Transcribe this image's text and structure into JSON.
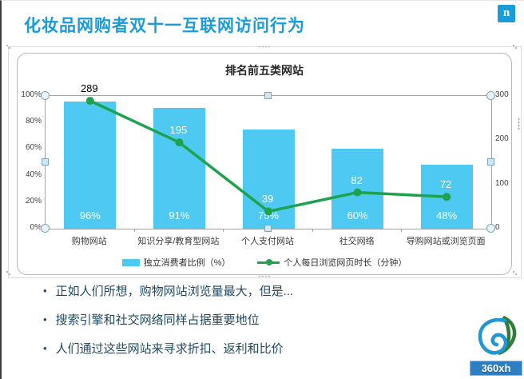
{
  "slide": {
    "title": "化妆品网购者双十一互联网访问行为",
    "nielsen_logo_letter": "n",
    "footer_logo_text": "360xh",
    "bullet_marker": "•"
  },
  "bullets": [
    "正如人们所想，购物网站浏览量最大，但是...",
    "搜索引擎和社交网络同样占据重要地位",
    "人们通过这些网站来寻求折扣、返利和比价"
  ],
  "chart_data": {
    "type": "combo-bar-line",
    "title": "排名前五类网站",
    "categories": [
      "购物网站",
      "知识分享/教育型网站",
      "个人支付网站",
      "社交网络",
      "导购网站或浏览页面"
    ],
    "series": [
      {
        "name": "独立消费者比例（%）",
        "type": "bar",
        "axis": "left",
        "values": [
          96,
          91,
          75,
          60,
          48
        ],
        "labels": [
          "96%",
          "91%",
          "75%",
          "60%",
          "48%"
        ]
      },
      {
        "name": "个人每日浏览网页时长（分钟）",
        "type": "line",
        "axis": "right",
        "values": [
          289,
          195,
          39,
          82,
          72
        ],
        "labels": [
          "289",
          "195",
          "39",
          "82",
          "72"
        ]
      }
    ],
    "left_axis": {
      "min": 0,
      "max": 100,
      "ticks": [
        "100%",
        "80%",
        "60%",
        "40%",
        "20%",
        "0%"
      ]
    },
    "right_axis": {
      "min": 0,
      "max": 300,
      "ticks": [
        "300",
        "200",
        "100",
        "0"
      ]
    },
    "legend_position": "bottom",
    "grid": "top-line-only"
  },
  "colors": {
    "title": "#199CD8",
    "nielsen_blue": "#199CD8",
    "bar": "#4DC9F2",
    "line": "#1FA24E",
    "bullet_text": "#1E4B61",
    "banner_blue": "#2E7EC2",
    "swirl_blue": "#2096D3",
    "swirl_green": "#2F7D3A"
  }
}
